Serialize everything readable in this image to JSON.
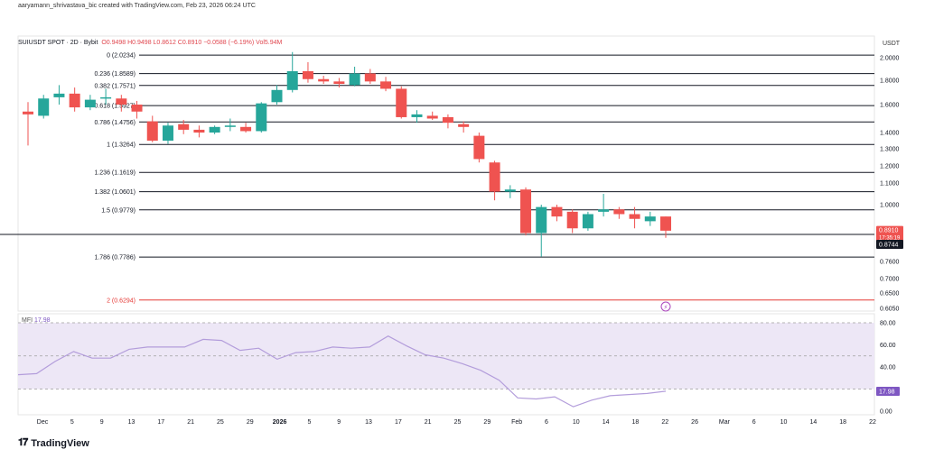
{
  "caption": "aaryamann_shrivastava_bic created with TradingView.com, Feb 23, 2026 06:24 UTC",
  "symbol": {
    "name": "SUIUSDT SPOT · 2D · Bybit",
    "ohlc": "O0.9498  H0.9498  L0.8612  C0.8910  −0.0588 (−6.19%)  Vol5.94M"
  },
  "currency": "USDT",
  "colors": {
    "up": "#26a69a",
    "down": "#ef5350",
    "mfi": "#b39ddb",
    "mfi_band": "#ede7f6",
    "fib": "#131722",
    "fib_red": "#e53935"
  },
  "price_axis": [
    {
      "label": "2.0000",
      "p": 2.0
    },
    {
      "label": "1.8000",
      "p": 1.8
    },
    {
      "label": "1.6000",
      "p": 1.6
    },
    {
      "label": "1.4000",
      "p": 1.4
    },
    {
      "label": "1.3000",
      "p": 1.3
    },
    {
      "label": "1.2000",
      "p": 1.2
    },
    {
      "label": "1.1000",
      "p": 1.1
    },
    {
      "label": "1.0000",
      "p": 1.0
    },
    {
      "label": "0.7600",
      "p": 0.76
    },
    {
      "label": "0.7000",
      "p": 0.7
    },
    {
      "label": "0.6500",
      "p": 0.65
    },
    {
      "label": "0.6050",
      "p": 0.605
    }
  ],
  "last_price": {
    "label": "0.8910",
    "countdown": "17:35:19",
    "p": 0.891
  },
  "level_line": {
    "label": "0.8744",
    "p": 0.8744
  },
  "fib_levels": [
    {
      "label": "0 (2.0234)",
      "p": 2.0234
    },
    {
      "label": "0.236 (1.8589)",
      "p": 1.8589
    },
    {
      "label": "0.382 (1.7571)",
      "p": 1.7571
    },
    {
      "label": "0.618 (1.5927)",
      "p": 1.5927
    },
    {
      "label": "0.786 (1.4756)",
      "p": 1.4756
    },
    {
      "label": "1 (1.3264)",
      "p": 1.3264
    },
    {
      "label": "1.236 (1.1619)",
      "p": 1.1619
    },
    {
      "label": "1.382 (1.0601)",
      "p": 1.0601
    },
    {
      "label": "1.5 (0.9779)",
      "p": 0.9779
    },
    {
      "label": "1.786 (0.7786)",
      "p": 0.7786
    },
    {
      "label": "2 (0.6294)",
      "p": 0.6294,
      "red": true
    }
  ],
  "mfi": {
    "name": "MFI",
    "value": "17.98",
    "axis": [
      {
        "label": "80.00",
        "v": 80
      },
      {
        "label": "60.00",
        "v": 60
      },
      {
        "label": "40.00",
        "v": 40
      },
      {
        "label": "20.00",
        "v": 20
      },
      {
        "label": "0.00",
        "v": 0
      }
    ],
    "upper": 80,
    "lower": 20,
    "mid": 50,
    "series": [
      33,
      34,
      45,
      54,
      48,
      48,
      56,
      58,
      58,
      58,
      65,
      64,
      55,
      57,
      47,
      53,
      54,
      58,
      57,
      58,
      68,
      59,
      51,
      48,
      43,
      37,
      28,
      12,
      11,
      13,
      4,
      10,
      14,
      15,
      16,
      18
    ]
  },
  "time_axis": [
    "Dec",
    "5",
    "9",
    "13",
    "17",
    "21",
    "25",
    "29",
    "2026",
    "5",
    "9",
    "13",
    "17",
    "21",
    "25",
    "29",
    "Feb",
    "6",
    "10",
    "14",
    "18",
    "22",
    "26",
    "Mar",
    "6",
    "10",
    "14",
    "18",
    "22"
  ],
  "chart_data": {
    "type": "candlestick",
    "title": "SUIUSDT SPOT · 2D · Bybit",
    "ylabel": "USDT",
    "ylim": [
      0.6,
      2.05
    ],
    "candles": [
      {
        "o": 1.55,
        "h": 1.62,
        "l": 1.32,
        "c": 1.53
      },
      {
        "o": 1.52,
        "h": 1.68,
        "l": 1.5,
        "c": 1.65
      },
      {
        "o": 1.66,
        "h": 1.76,
        "l": 1.6,
        "c": 1.69
      },
      {
        "o": 1.69,
        "h": 1.74,
        "l": 1.55,
        "c": 1.58
      },
      {
        "o": 1.58,
        "h": 1.68,
        "l": 1.56,
        "c": 1.64
      },
      {
        "o": 1.65,
        "h": 1.73,
        "l": 1.6,
        "c": 1.66
      },
      {
        "o": 1.65,
        "h": 1.68,
        "l": 1.55,
        "c": 1.6
      },
      {
        "o": 1.6,
        "h": 1.63,
        "l": 1.5,
        "c": 1.55
      },
      {
        "o": 1.48,
        "h": 1.52,
        "l": 1.34,
        "c": 1.35
      },
      {
        "o": 1.35,
        "h": 1.47,
        "l": 1.33,
        "c": 1.45
      },
      {
        "o": 1.46,
        "h": 1.49,
        "l": 1.39,
        "c": 1.42
      },
      {
        "o": 1.42,
        "h": 1.45,
        "l": 1.37,
        "c": 1.4
      },
      {
        "o": 1.4,
        "h": 1.45,
        "l": 1.39,
        "c": 1.44
      },
      {
        "o": 1.44,
        "h": 1.5,
        "l": 1.41,
        "c": 1.45
      },
      {
        "o": 1.44,
        "h": 1.47,
        "l": 1.4,
        "c": 1.41
      },
      {
        "o": 1.41,
        "h": 1.62,
        "l": 1.4,
        "c": 1.61
      },
      {
        "o": 1.62,
        "h": 1.76,
        "l": 1.6,
        "c": 1.72
      },
      {
        "o": 1.72,
        "h": 2.05,
        "l": 1.7,
        "c": 1.88
      },
      {
        "o": 1.88,
        "h": 1.96,
        "l": 1.78,
        "c": 1.81
      },
      {
        "o": 1.81,
        "h": 1.84,
        "l": 1.77,
        "c": 1.79
      },
      {
        "o": 1.79,
        "h": 1.82,
        "l": 1.74,
        "c": 1.77
      },
      {
        "o": 1.76,
        "h": 1.92,
        "l": 1.75,
        "c": 1.86
      },
      {
        "o": 1.86,
        "h": 1.9,
        "l": 1.77,
        "c": 1.79
      },
      {
        "o": 1.79,
        "h": 1.83,
        "l": 1.71,
        "c": 1.73
      },
      {
        "o": 1.73,
        "h": 1.75,
        "l": 1.5,
        "c": 1.51
      },
      {
        "o": 1.51,
        "h": 1.56,
        "l": 1.47,
        "c": 1.53
      },
      {
        "o": 1.52,
        "h": 1.55,
        "l": 1.49,
        "c": 1.5
      },
      {
        "o": 1.51,
        "h": 1.53,
        "l": 1.43,
        "c": 1.47
      },
      {
        "o": 1.46,
        "h": 1.48,
        "l": 1.4,
        "c": 1.44
      },
      {
        "o": 1.38,
        "h": 1.4,
        "l": 1.22,
        "c": 1.24
      },
      {
        "o": 1.22,
        "h": 1.23,
        "l": 1.02,
        "c": 1.06
      },
      {
        "o": 1.06,
        "h": 1.09,
        "l": 1.03,
        "c": 1.07
      },
      {
        "o": 1.07,
        "h": 1.08,
        "l": 0.87,
        "c": 0.88
      },
      {
        "o": 0.88,
        "h": 1.0,
        "l": 0.78,
        "c": 0.99
      },
      {
        "o": 0.99,
        "h": 1.0,
        "l": 0.93,
        "c": 0.95
      },
      {
        "o": 0.97,
        "h": 0.98,
        "l": 0.88,
        "c": 0.9
      },
      {
        "o": 0.9,
        "h": 0.97,
        "l": 0.89,
        "c": 0.96
      },
      {
        "o": 0.97,
        "h": 1.05,
        "l": 0.95,
        "c": 0.98
      },
      {
        "o": 0.98,
        "h": 0.99,
        "l": 0.94,
        "c": 0.96
      },
      {
        "o": 0.96,
        "h": 0.99,
        "l": 0.9,
        "c": 0.94
      },
      {
        "o": 0.93,
        "h": 0.97,
        "l": 0.91,
        "c": 0.95
      },
      {
        "o": 0.95,
        "h": 0.95,
        "l": 0.86,
        "c": 0.89
      }
    ]
  },
  "brand": "TradingView"
}
